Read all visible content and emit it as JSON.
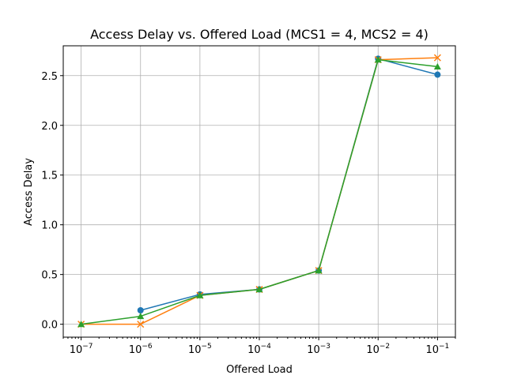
{
  "chart_data": {
    "type": "line",
    "title": "Access Delay vs. Offered Load (MCS1 = 4, MCS2 = 4)",
    "xlabel": "Offered Load",
    "ylabel": "Access Delay",
    "xscale": "log",
    "xlim": [
      5e-08,
      0.2
    ],
    "ylim": [
      -0.13,
      2.8
    ],
    "grid": true,
    "x": [
      1e-07,
      1e-06,
      1e-05,
      0.0001,
      0.001,
      0.01,
      0.1
    ],
    "x_tick_labels": [
      {
        "base": "10",
        "exp": "−7"
      },
      {
        "base": "10",
        "exp": "−6"
      },
      {
        "base": "10",
        "exp": "−5"
      },
      {
        "base": "10",
        "exp": "−4"
      },
      {
        "base": "10",
        "exp": "−3"
      },
      {
        "base": "10",
        "exp": "−2"
      },
      {
        "base": "10",
        "exp": "−1"
      }
    ],
    "y_ticks": [
      0.0,
      0.5,
      1.0,
      1.5,
      2.0,
      2.5
    ],
    "y_tick_labels": [
      "0.0",
      "0.5",
      "1.0",
      "1.5",
      "2.0",
      "2.5"
    ],
    "series": [
      {
        "values": [
          null,
          0.14,
          0.3,
          0.35,
          0.54,
          2.67,
          2.51
        ],
        "color": "#1f77b4",
        "marker": "circle"
      },
      {
        "values": [
          0.0,
          0.0,
          0.29,
          0.35,
          0.54,
          2.66,
          2.68
        ],
        "color": "#ff7f0e",
        "marker": "x"
      },
      {
        "values": [
          0.0,
          0.08,
          0.29,
          0.35,
          0.54,
          2.66,
          2.59
        ],
        "color": "#2ca02c",
        "marker": "triangle"
      }
    ]
  }
}
